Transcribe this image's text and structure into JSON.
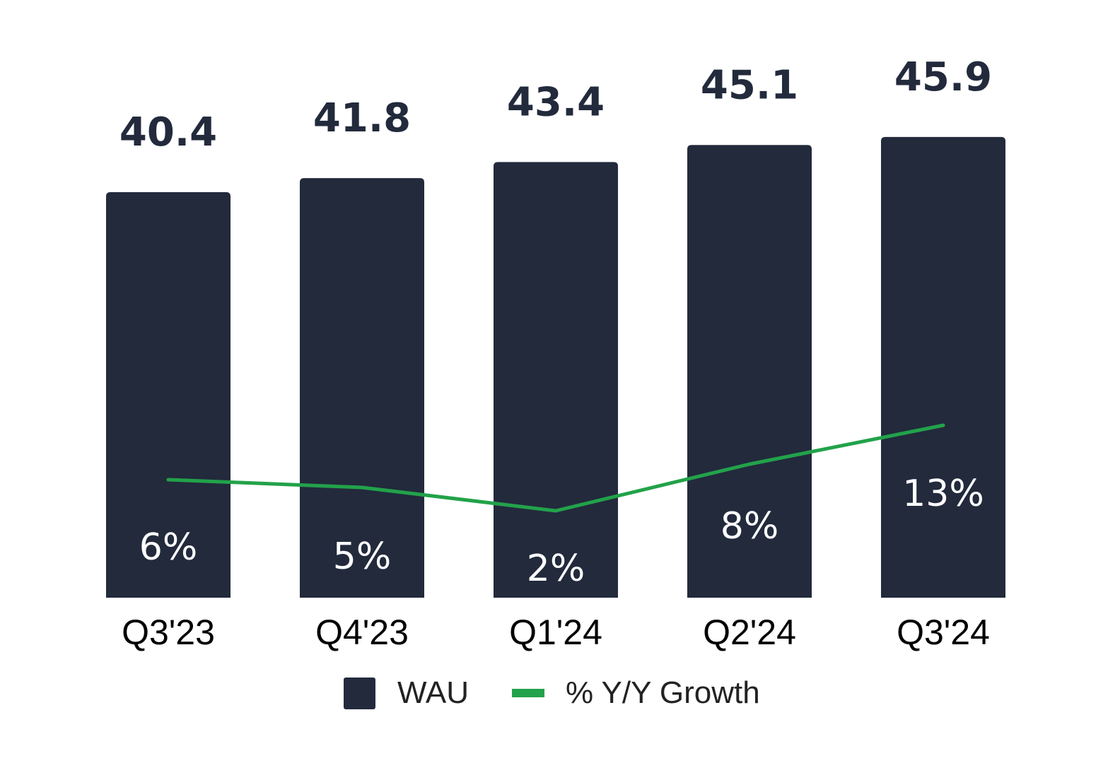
{
  "chart_data": {
    "type": "bar",
    "categories": [
      "Q3'23",
      "Q4'23",
      "Q1'24",
      "Q2'24",
      "Q3'24"
    ],
    "series": [
      {
        "name": "WAU",
        "type": "bar",
        "values": [
          40.4,
          41.8,
          43.4,
          45.1,
          45.9
        ],
        "value_labels": [
          "40.4",
          "41.8",
          "43.4",
          "45.1",
          "45.9"
        ]
      },
      {
        "name": "% Y/Y Growth",
        "type": "line",
        "values": [
          6,
          5,
          2,
          8,
          13
        ],
        "value_labels": [
          "6%",
          "5%",
          "2%",
          "8%",
          "13%"
        ]
      }
    ],
    "legend": {
      "position": "bottom",
      "entries": [
        "WAU",
        "% Y/Y Growth"
      ]
    },
    "grid": false
  },
  "colors": {
    "bar": "#222a3c",
    "line": "#22a24a",
    "value_text": "#222a3c",
    "pct_text": "#ffffff",
    "tick_text": "#000000",
    "legend_text": "#222222"
  }
}
